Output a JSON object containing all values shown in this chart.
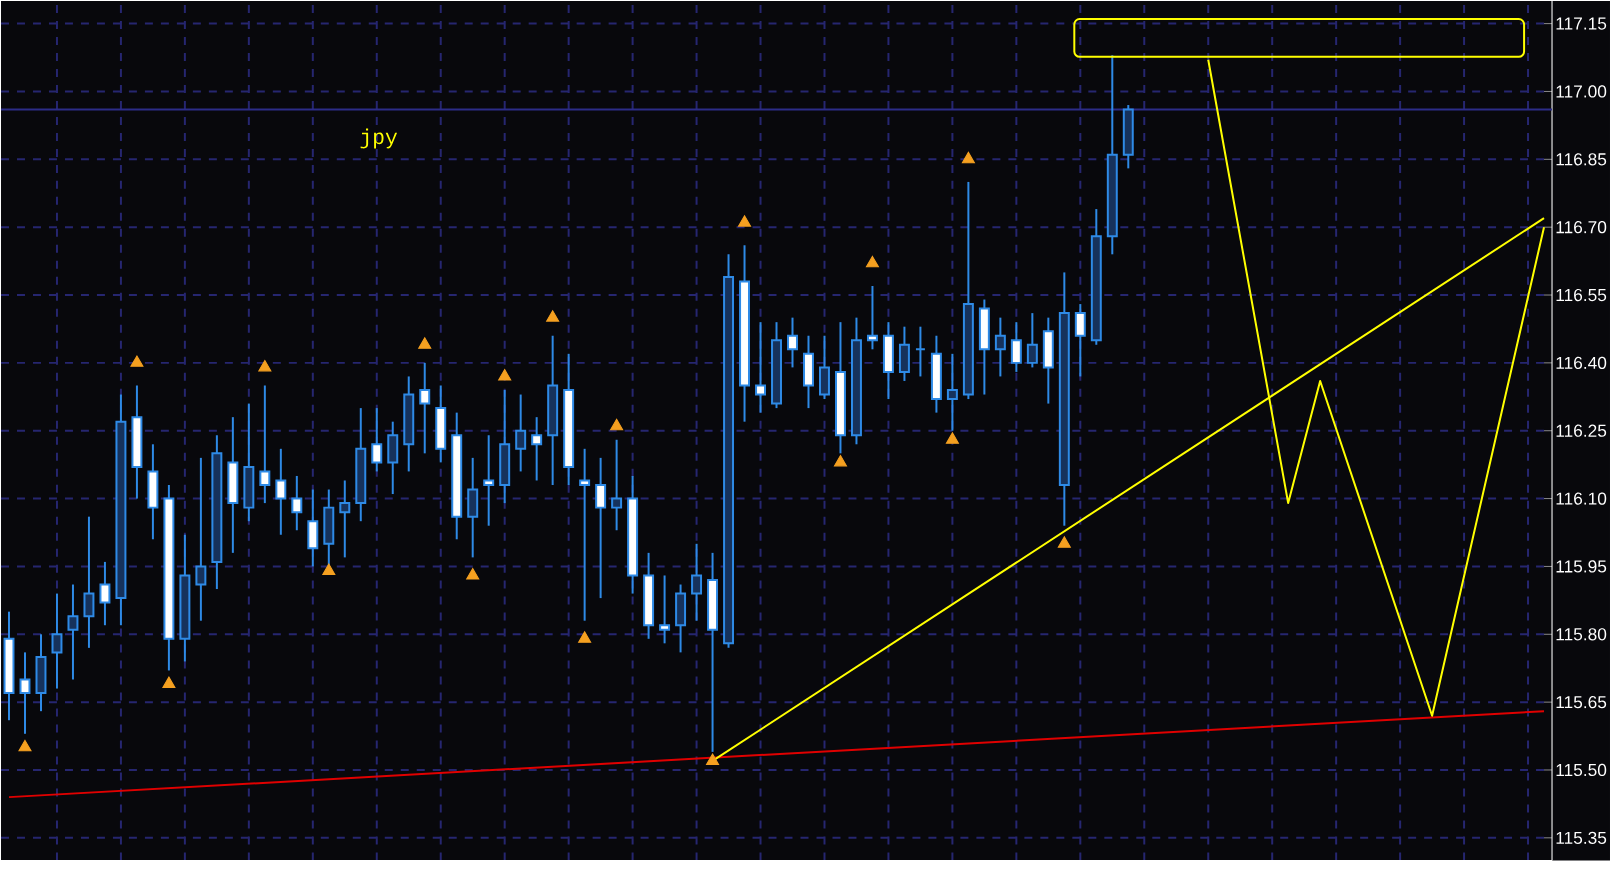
{
  "chart_data": {
    "type": "candlestick",
    "categories": [
      null,
      null,
      null,
      null,
      null,
      null,
      null,
      null,
      null,
      null,
      null,
      null,
      null,
      null,
      null,
      null,
      null,
      null,
      null,
      null,
      null,
      null,
      null,
      null,
      null,
      null,
      null,
      null,
      null,
      null,
      null,
      null,
      null,
      null,
      null,
      null,
      null,
      null,
      null,
      null,
      null,
      null,
      null,
      null,
      null,
      null,
      null,
      null,
      null,
      null,
      null,
      null,
      null,
      null,
      null,
      null,
      null,
      null,
      null,
      null,
      null,
      null,
      null,
      null,
      null,
      null,
      null,
      null,
      null,
      null,
      null,
      null,
      null,
      null,
      null,
      null,
      null,
      null,
      null,
      null,
      null,
      null,
      null,
      null,
      null,
      null,
      null,
      null,
      null,
      null,
      null,
      null,
      null,
      null,
      null,
      null,
      null
    ],
    "ohlc": [
      [
        115.79,
        115.85,
        115.61,
        115.67
      ],
      [
        115.7,
        115.76,
        115.58,
        115.67
      ],
      [
        115.67,
        115.8,
        115.63,
        115.75
      ],
      [
        115.76,
        115.89,
        115.68,
        115.8
      ],
      [
        115.81,
        115.91,
        115.7,
        115.84
      ],
      [
        115.84,
        116.06,
        115.77,
        115.89
      ],
      [
        115.91,
        115.96,
        115.82,
        115.87
      ],
      [
        115.88,
        116.33,
        115.82,
        116.27
      ],
      [
        116.28,
        116.35,
        116.1,
        116.17
      ],
      [
        116.16,
        116.22,
        116.01,
        116.08
      ],
      [
        116.1,
        116.13,
        115.72,
        115.79
      ],
      [
        115.79,
        116.02,
        115.74,
        115.93
      ],
      [
        115.91,
        116.19,
        115.83,
        115.95
      ],
      [
        115.96,
        116.24,
        115.9,
        116.2
      ],
      [
        116.18,
        116.28,
        115.98,
        116.09
      ],
      [
        116.08,
        116.31,
        116.05,
        116.17
      ],
      [
        116.16,
        116.35,
        116.09,
        116.13
      ],
      [
        116.14,
        116.21,
        116.02,
        116.1
      ],
      [
        116.1,
        116.15,
        116.03,
        116.07
      ],
      [
        116.05,
        116.12,
        115.95,
        115.99
      ],
      [
        116.0,
        116.12,
        115.95,
        116.08
      ],
      [
        116.07,
        116.14,
        115.97,
        116.09
      ],
      [
        116.09,
        116.3,
        116.05,
        116.21
      ],
      [
        116.22,
        116.3,
        116.16,
        116.18
      ],
      [
        116.18,
        116.27,
        116.11,
        116.24
      ],
      [
        116.22,
        116.37,
        116.16,
        116.33
      ],
      [
        116.34,
        116.4,
        116.2,
        116.31
      ],
      [
        116.3,
        116.35,
        116.18,
        116.21
      ],
      [
        116.24,
        116.29,
        116.01,
        116.06
      ],
      [
        116.06,
        116.19,
        115.97,
        116.12
      ],
      [
        116.14,
        116.24,
        116.04,
        116.13
      ],
      [
        116.13,
        116.34,
        116.09,
        116.22
      ],
      [
        116.21,
        116.33,
        116.16,
        116.25
      ],
      [
        116.24,
        116.28,
        116.14,
        116.22
      ],
      [
        116.24,
        116.46,
        116.13,
        116.35
      ],
      [
        116.34,
        116.42,
        116.13,
        116.17
      ],
      [
        116.14,
        116.21,
        115.83,
        116.13
      ],
      [
        116.13,
        116.19,
        115.88,
        116.08
      ],
      [
        116.08,
        116.23,
        116.03,
        116.1
      ],
      [
        116.1,
        116.15,
        115.89,
        115.93
      ],
      [
        115.93,
        115.98,
        115.79,
        115.82
      ],
      [
        115.82,
        115.93,
        115.78,
        115.81
      ],
      [
        115.82,
        115.91,
        115.76,
        115.89
      ],
      [
        115.89,
        116.0,
        115.83,
        115.93
      ],
      [
        115.92,
        115.98,
        115.54,
        115.81
      ],
      [
        115.78,
        116.64,
        115.77,
        116.59
      ],
      [
        116.58,
        116.66,
        116.27,
        116.35
      ],
      [
        116.35,
        116.49,
        116.29,
        116.33
      ],
      [
        116.31,
        116.49,
        116.3,
        116.45
      ],
      [
        116.46,
        116.5,
        116.39,
        116.43
      ],
      [
        116.42,
        116.46,
        116.3,
        116.35
      ],
      [
        116.33,
        116.46,
        116.32,
        116.39
      ],
      [
        116.38,
        116.49,
        116.2,
        116.24
      ],
      [
        116.24,
        116.5,
        116.22,
        116.45
      ],
      [
        116.46,
        116.57,
        116.43,
        116.45
      ],
      [
        116.46,
        116.49,
        116.32,
        116.38
      ],
      [
        116.38,
        116.48,
        116.36,
        116.44
      ],
      [
        116.43,
        116.48,
        116.37,
        116.43
      ],
      [
        116.42,
        116.46,
        116.29,
        116.32
      ],
      [
        116.32,
        116.42,
        116.25,
        116.34
      ],
      [
        116.33,
        116.8,
        116.32,
        116.53
      ],
      [
        116.52,
        116.54,
        116.33,
        116.43
      ],
      [
        116.43,
        116.5,
        116.37,
        116.46
      ],
      [
        116.45,
        116.49,
        116.38,
        116.4
      ],
      [
        116.4,
        116.51,
        116.39,
        116.44
      ],
      [
        116.47,
        116.5,
        116.31,
        116.39
      ],
      [
        116.13,
        116.6,
        116.04,
        116.51
      ],
      [
        116.51,
        116.53,
        116.37,
        116.46
      ],
      [
        116.45,
        116.74,
        116.44,
        116.68
      ],
      [
        116.68,
        117.08,
        116.64,
        116.86
      ],
      [
        116.86,
        116.97,
        116.83,
        116.96
      ],
      null,
      null,
      null,
      null,
      null,
      null,
      null,
      null,
      null,
      null,
      null,
      null,
      null,
      null,
      null,
      null,
      null,
      null,
      null,
      null,
      null,
      null,
      null,
      null,
      null,
      null
    ],
    "color": "#2e8ae6",
    "series": [
      {
        "type": "line",
        "color": "#e00000",
        "line_style": "solid",
        "values": [
          115.44,
          null,
          null,
          null,
          null,
          null,
          null,
          null,
          null,
          null,
          null,
          null,
          null,
          null,
          null,
          null,
          null,
          null,
          null,
          null,
          null,
          null,
          null,
          null,
          null,
          null,
          null,
          null,
          null,
          null,
          null,
          null,
          null,
          null,
          null,
          null,
          null,
          null,
          null,
          null,
          null,
          null,
          null,
          null,
          null,
          null,
          null,
          null,
          null,
          null,
          null,
          null,
          null,
          null,
          null,
          null,
          null,
          null,
          null,
          null,
          null,
          null,
          null,
          null,
          null,
          null,
          null,
          null,
          null,
          null,
          null,
          null,
          null,
          null,
          null,
          null,
          null,
          null,
          null,
          null,
          null,
          null,
          null,
          null,
          null,
          null,
          null,
          null,
          null,
          null,
          null,
          null,
          null,
          null,
          null,
          null,
          115.63
        ]
      },
      {
        "type": "line",
        "color": "#ffff00",
        "line_style": "solid",
        "values": [
          null,
          null,
          null,
          null,
          null,
          null,
          null,
          null,
          null,
          null,
          null,
          null,
          null,
          null,
          null,
          null,
          null,
          null,
          null,
          null,
          null,
          null,
          null,
          null,
          null,
          null,
          null,
          null,
          null,
          null,
          null,
          null,
          null,
          null,
          null,
          null,
          null,
          null,
          null,
          null,
          null,
          null,
          null,
          null,
          115.52,
          null,
          null,
          null,
          null,
          null,
          null,
          null,
          null,
          null,
          null,
          null,
          null,
          null,
          null,
          null,
          null,
          null,
          null,
          null,
          null,
          null,
          null,
          null,
          null,
          null,
          null,
          null,
          null,
          null,
          null,
          null,
          null,
          null,
          null,
          null,
          null,
          null,
          null,
          null,
          null,
          null,
          null,
          null,
          null,
          null,
          null,
          null,
          null,
          null,
          null,
          null,
          116.72
        ]
      },
      {
        "type": "line",
        "color": "#ffff00",
        "line_style": "solid",
        "values": [
          null,
          null,
          null,
          null,
          null,
          null,
          null,
          null,
          null,
          null,
          null,
          null,
          null,
          null,
          null,
          null,
          null,
          null,
          null,
          null,
          null,
          null,
          null,
          null,
          null,
          null,
          null,
          null,
          null,
          null,
          null,
          null,
          null,
          null,
          null,
          null,
          null,
          null,
          null,
          null,
          null,
          null,
          null,
          null,
          null,
          null,
          null,
          null,
          null,
          null,
          null,
          null,
          null,
          null,
          null,
          null,
          null,
          null,
          null,
          null,
          null,
          null,
          null,
          null,
          null,
          null,
          null,
          null,
          null,
          null,
          null,
          null,
          null,
          null,
          null,
          117.07,
          null,
          null,
          null,
          null,
          116.09,
          null,
          116.36,
          null,
          null,
          null,
          null,
          null,
          null,
          115.62,
          null,
          null,
          null,
          null,
          null,
          null,
          116.7
        ]
      },
      {
        "type": "scatter",
        "color": "#f5a020",
        "marker": "triangle",
        "values": [
          null,
          null,
          null,
          null,
          null,
          null,
          null,
          null,
          116.4,
          null,
          null,
          null,
          null,
          null,
          null,
          null,
          116.39,
          null,
          null,
          null,
          null,
          null,
          null,
          null,
          null,
          null,
          116.44,
          null,
          null,
          null,
          null,
          116.37,
          null,
          null,
          116.5,
          null,
          null,
          null,
          116.26,
          null,
          null,
          null,
          null,
          null,
          null,
          null,
          116.71,
          null,
          null,
          null,
          null,
          null,
          null,
          null,
          116.62,
          null,
          null,
          null,
          null,
          null,
          116.85,
          null,
          null,
          null,
          null,
          null,
          null,
          null,
          null,
          null,
          null,
          null,
          null,
          null,
          null,
          null,
          null,
          null,
          null,
          null,
          null,
          null,
          null,
          null,
          null,
          null,
          null,
          null,
          null,
          null,
          null,
          null,
          null,
          null,
          null,
          null,
          null
        ]
      },
      {
        "type": "scatter",
        "color": "#f5a020",
        "marker": "triangle",
        "values": [
          null,
          115.55,
          null,
          null,
          null,
          null,
          null,
          null,
          null,
          null,
          115.69,
          null,
          null,
          null,
          null,
          null,
          null,
          null,
          null,
          null,
          115.94,
          null,
          null,
          null,
          null,
          null,
          null,
          null,
          null,
          115.93,
          null,
          null,
          null,
          null,
          null,
          null,
          115.79,
          null,
          null,
          null,
          null,
          null,
          null,
          null,
          115.52,
          null,
          null,
          null,
          null,
          null,
          null,
          null,
          116.18,
          null,
          null,
          null,
          null,
          null,
          null,
          116.23,
          null,
          null,
          null,
          null,
          null,
          null,
          116.0,
          null,
          null,
          null,
          null,
          null,
          null,
          null,
          null,
          null,
          null,
          null,
          null,
          null,
          null,
          null,
          null,
          null,
          null,
          null,
          null,
          null,
          null,
          null,
          null,
          null,
          null,
          null,
          null,
          null,
          null
        ]
      }
    ],
    "ref_lines": [
      {
        "axis": "y",
        "value": 116.96,
        "color": "#2c2c88",
        "line_style": "solid"
      }
    ],
    "annotations": [
      "jpy"
    ],
    "ylim": [
      115.3,
      117.2
    ],
    "yticks": [
      {
        "value": 115.35,
        "label": "115.35"
      },
      {
        "value": 115.5,
        "label": "115.50"
      },
      {
        "value": 115.65,
        "label": "115.65"
      },
      {
        "value": 115.8,
        "label": "115.80"
      },
      {
        "value": 115.95,
        "label": "115.95"
      },
      {
        "value": 116.1,
        "label": "116.10"
      },
      {
        "value": 116.25,
        "label": "116.25"
      },
      {
        "value": 116.4,
        "label": "116.40"
      },
      {
        "value": 116.55,
        "label": "116.55"
      },
      {
        "value": 116.7,
        "label": "116.70"
      },
      {
        "value": 116.85,
        "label": "116.85"
      },
      {
        "value": 117,
        "label": "117.00"
      },
      {
        "value": 117.15,
        "label": "117.15"
      }
    ],
    "grid": true,
    "tick_labels": "y"
  }
}
